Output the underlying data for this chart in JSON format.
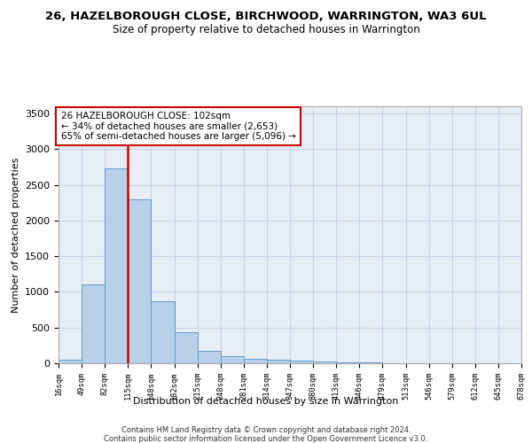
{
  "title": "26, HAZELBOROUGH CLOSE, BIRCHWOOD, WARRINGTON, WA3 6UL",
  "subtitle": "Size of property relative to detached houses in Warrington",
  "xlabel": "Distribution of detached houses by size in Warrington",
  "ylabel": "Number of detached properties",
  "bar_values": [
    50,
    1100,
    2730,
    2300,
    870,
    430,
    170,
    100,
    65,
    55,
    35,
    20,
    15,
    10,
    5,
    3,
    2,
    2,
    1,
    1
  ],
  "bin_labels": [
    "16sqm",
    "49sqm",
    "82sqm",
    "115sqm",
    "148sqm",
    "182sqm",
    "215sqm",
    "248sqm",
    "281sqm",
    "314sqm",
    "347sqm",
    "380sqm",
    "413sqm",
    "446sqm",
    "479sqm",
    "513sqm",
    "546sqm",
    "579sqm",
    "612sqm",
    "645sqm",
    "678sqm"
  ],
  "bar_color": "#b8d0ea",
  "bar_edge_color": "#6699cc",
  "grid_color": "#c8d4e8",
  "background_color": "#e8eef6",
  "vline_color": "#cc0000",
  "annotation_text": "26 HAZELBOROUGH CLOSE: 102sqm\n← 34% of detached houses are smaller (2,653)\n65% of semi-detached houses are larger (5,096) →",
  "annotation_box_color": "#cc0000",
  "ylim": [
    0,
    3600
  ],
  "yticks": [
    0,
    500,
    1000,
    1500,
    2000,
    2500,
    3000,
    3500
  ],
  "footer1": "Contains HM Land Registry data © Crown copyright and database right 2024.",
  "footer2": "Contains public sector information licensed under the Open Government Licence v3.0.",
  "title_fontsize": 9.5,
  "subtitle_fontsize": 8.5
}
